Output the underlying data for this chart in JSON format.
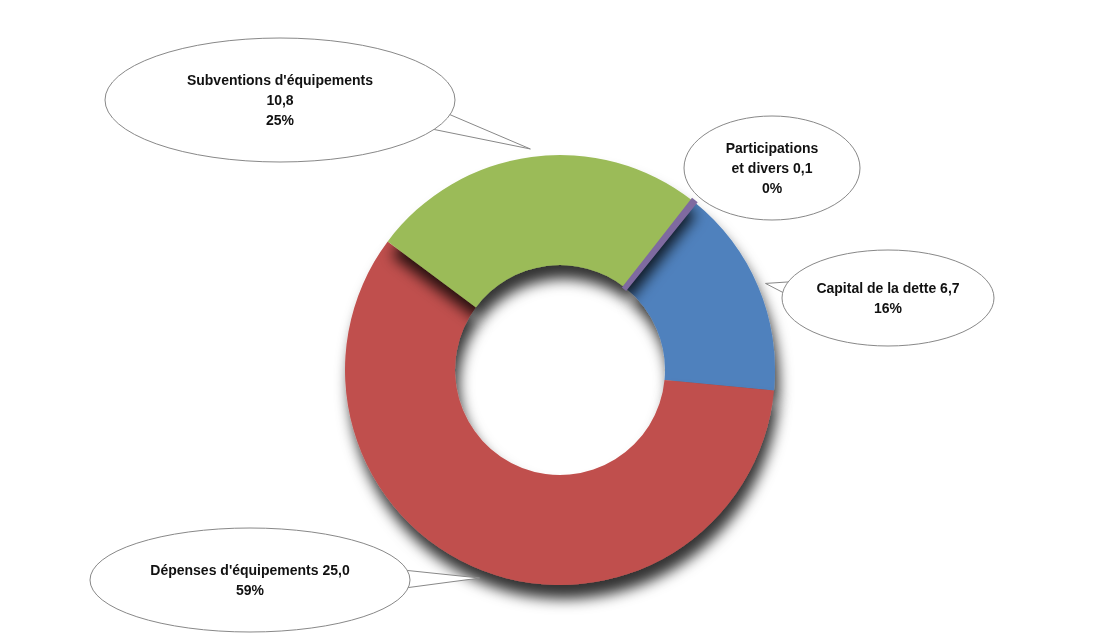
{
  "chart_data": {
    "type": "donut",
    "categories": [
      "Participations et divers",
      "Capital de la dette",
      "Dépenses d'équipements",
      "Subventions d'équipements"
    ],
    "values": [
      0.1,
      6.7,
      25.0,
      10.8
    ],
    "colors": [
      "#7f6aa0",
      "#4f81bd",
      "#c0504d",
      "#9bbb59"
    ],
    "value_labels": [
      "0,1\n0%",
      "6,7\n16%",
      "25,0\n59%",
      "10,8\n25%"
    ]
  }
}
